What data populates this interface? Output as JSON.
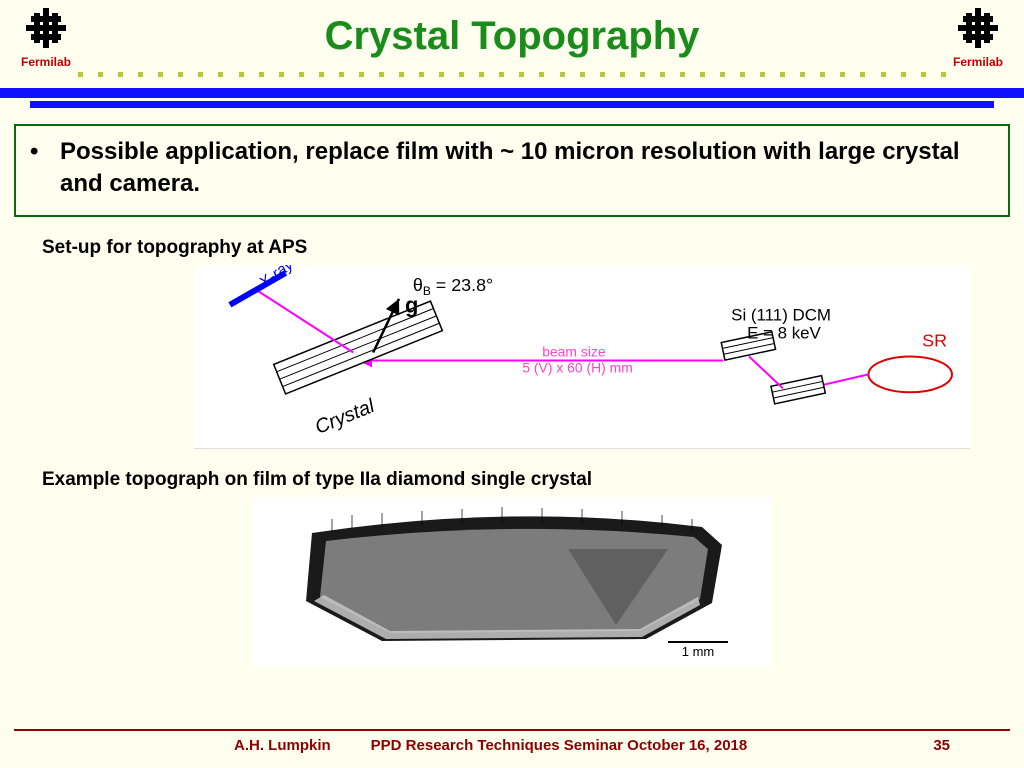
{
  "header": {
    "title": "Crystal Topography",
    "logo_label": "Fermilab",
    "title_color": "#1a8c1a",
    "logo_color": "#000000",
    "logo_label_color": "#c00000",
    "dot_color": "#b8c63a",
    "bar_color": "#1010ff",
    "dot_count": 44
  },
  "bullet": {
    "text": "Possible application, replace film with ~ 10 micron resolution with large crystal and camera.",
    "box_border": "#0a6b0a"
  },
  "setup": {
    "heading": "Set-up for topography at APS",
    "labels": {
      "xray_film": "X-ray film",
      "theta": "θ",
      "theta_sub": "B",
      "theta_val": " = 23.8°",
      "g": "g",
      "crystal": "Crystal",
      "dcm1": "Si (111) DCM",
      "dcm2": "E = 8 keV",
      "beam1": "beam size",
      "beam2": "5 (V) x 60 (H) mm",
      "sr": "SR"
    },
    "colors": {
      "beam": "#ff00ff",
      "film": "#0000ff",
      "xray_text": "#0000ff",
      "sr": "#e00000",
      "beam_text": "#ff44cc",
      "stroke": "#000000"
    }
  },
  "topograph": {
    "heading": "Example topograph on film of type IIa diamond single crystal",
    "scale_label": "1 mm",
    "grays": {
      "edge": "#1a1a1a",
      "body": "#7c7c7c",
      "facet": "#606060",
      "highlight": "#c8c8c8",
      "bg": "#ffffff"
    }
  },
  "footer": {
    "author": "A.H. Lumpkin",
    "event": "PPD Research Techniques Seminar  October 16, 2018",
    "page": "35",
    "rule_color": "#8b0000",
    "text_color": "#8b0000"
  }
}
